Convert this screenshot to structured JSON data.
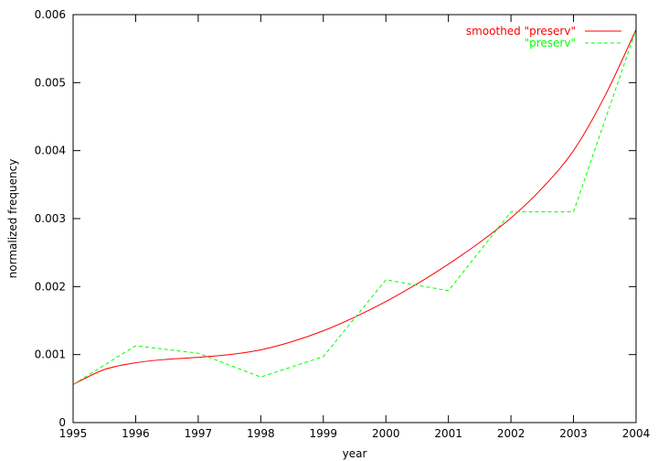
{
  "chart_data": {
    "type": "line",
    "title": "",
    "xlabel": "year",
    "ylabel": "normalized frequency",
    "xlim": [
      1995,
      2004
    ],
    "ylim": [
      0,
      0.006
    ],
    "xticks": [
      "1995",
      "1996",
      "1997",
      "1998",
      "1999",
      "2000",
      "2001",
      "2002",
      "2003",
      "2004"
    ],
    "yticks": [
      "0",
      "0.001",
      "0.002",
      "0.003",
      "0.004",
      "0.005",
      "0.006"
    ],
    "grid": false,
    "legend_position": "top-right",
    "series": [
      {
        "name": "smoothed \"preserv\"",
        "color": "#ff0000",
        "style": "solid",
        "x": [
          1995,
          1995.5,
          1996,
          1996.5,
          1997,
          1997.5,
          1998,
          1998.5,
          1999,
          1999.5,
          2000,
          2000.5,
          2001,
          2001.5,
          2002,
          2002.5,
          2003,
          2003.5,
          2004
        ],
        "y": [
          0.00056,
          0.00078,
          0.00088,
          0.00093,
          0.00096,
          0.001,
          0.00107,
          0.00119,
          0.00135,
          0.00155,
          0.00178,
          0.00204,
          0.00233,
          0.00265,
          0.00301,
          0.00345,
          0.004,
          0.0048,
          0.00578
        ]
      },
      {
        "name": "\"preserv\"",
        "color": "#00ff00",
        "style": "dashed",
        "x": [
          1995,
          1996,
          1997,
          1998,
          1999,
          2000,
          2001,
          2002,
          2003,
          2004
        ],
        "y": [
          0.00056,
          0.00113,
          0.00102,
          0.00067,
          0.00097,
          0.0021,
          0.00194,
          0.0031,
          0.0031,
          0.00578
        ]
      }
    ]
  }
}
